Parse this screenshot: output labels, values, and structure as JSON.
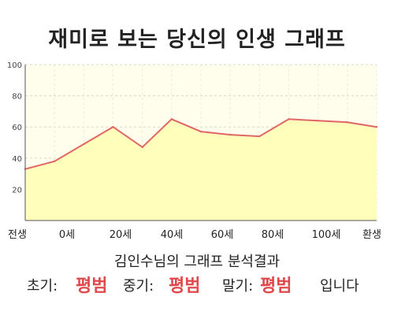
{
  "title": "재미로 보는 당신의 인생 그래프",
  "chart_data": {
    "type": "area",
    "title": "재미로 보는 당신의 인생 그래프",
    "x_tick_labels": [
      "전생",
      "0세",
      "20세",
      "40세",
      "60세",
      "80세",
      "100세",
      "환생"
    ],
    "y_ticks": [
      100,
      80,
      60,
      40,
      20
    ],
    "ylim": [
      0,
      100
    ],
    "series": [
      {
        "x": [
          "전생",
          "0세",
          "10세",
          "20세",
          "30세",
          "40세",
          "50세",
          "60세",
          "70세",
          "80세",
          "90세",
          "100세",
          "환생"
        ],
        "values": [
          33,
          38,
          49,
          60,
          47,
          65,
          57,
          55,
          54,
          65,
          64,
          63,
          60
        ]
      }
    ],
    "grid": true,
    "line_color": "#e06666",
    "fill_color": "#ffffbb",
    "plot_background": "#fffdec"
  },
  "summary": {
    "text": "김인수님의 그래프 분석결과"
  },
  "results": {
    "early_label": "초기:",
    "early_value": "평범",
    "middle_label": "중기:",
    "middle_value": "평범",
    "late_label": "말기:",
    "late_value": "평범",
    "suffix": "입니다"
  }
}
